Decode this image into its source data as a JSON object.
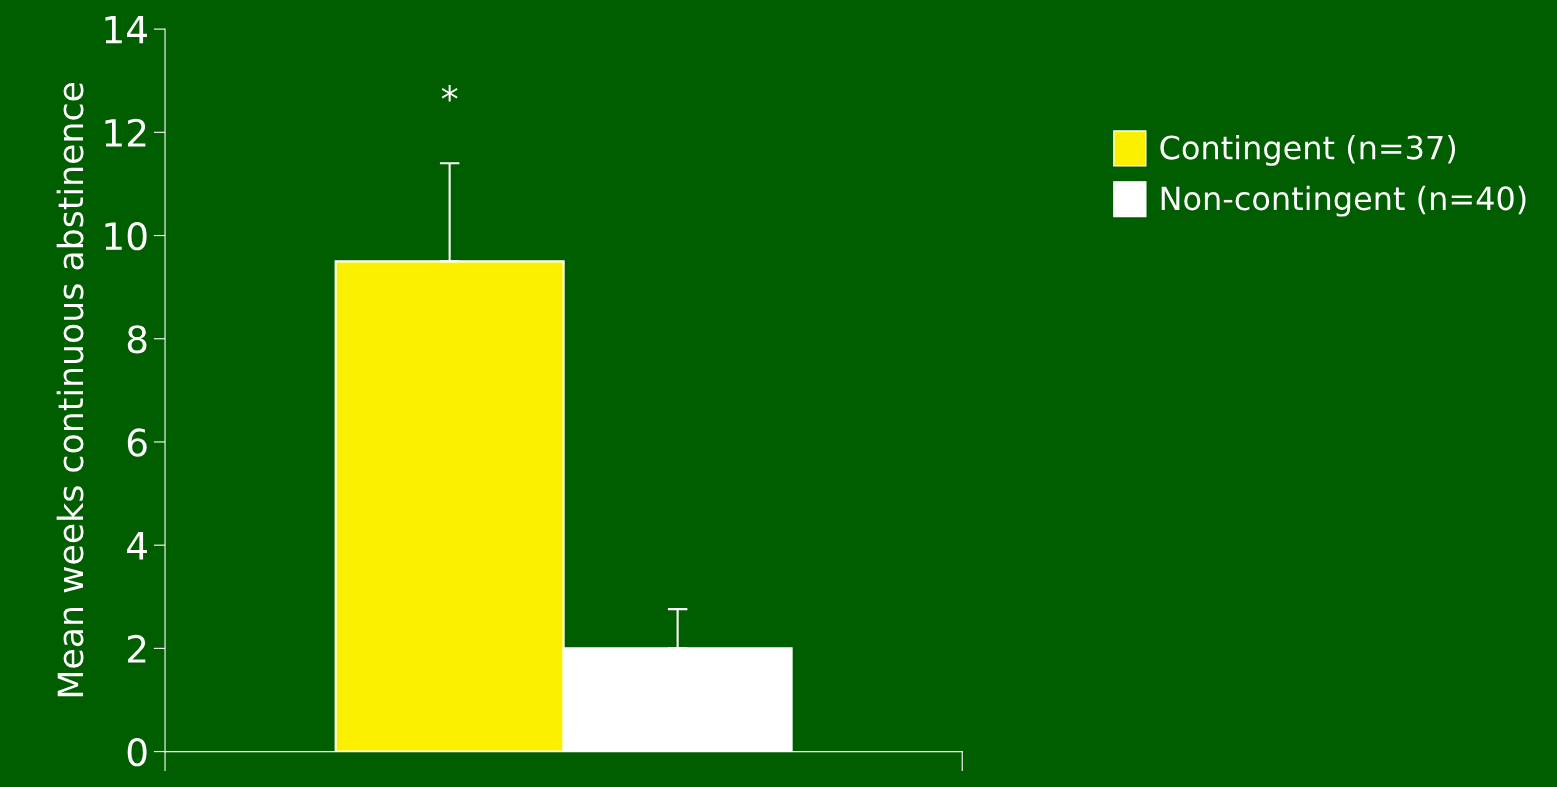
{
  "chart_data": {
    "type": "bar",
    "ylabel": "Mean weeks continuous abstinence",
    "categories": [
      null
    ],
    "series": [
      {
        "name": "Contingent (n=37)",
        "color": "#fbf000",
        "values": [
          9.5
        ],
        "errors": [
          1.9
        ]
      },
      {
        "name": "Non-contingent (n=40)",
        "color": "#ffffff",
        "values": [
          2.0
        ],
        "errors": [
          0.76
        ]
      }
    ],
    "ylim": [
      0,
      14
    ],
    "yticks": [
      0,
      2,
      4,
      6,
      8,
      10,
      12,
      14
    ],
    "tick_labels": "y",
    "grid": false,
    "legend": "top right",
    "annotations": [
      "*"
    ]
  }
}
